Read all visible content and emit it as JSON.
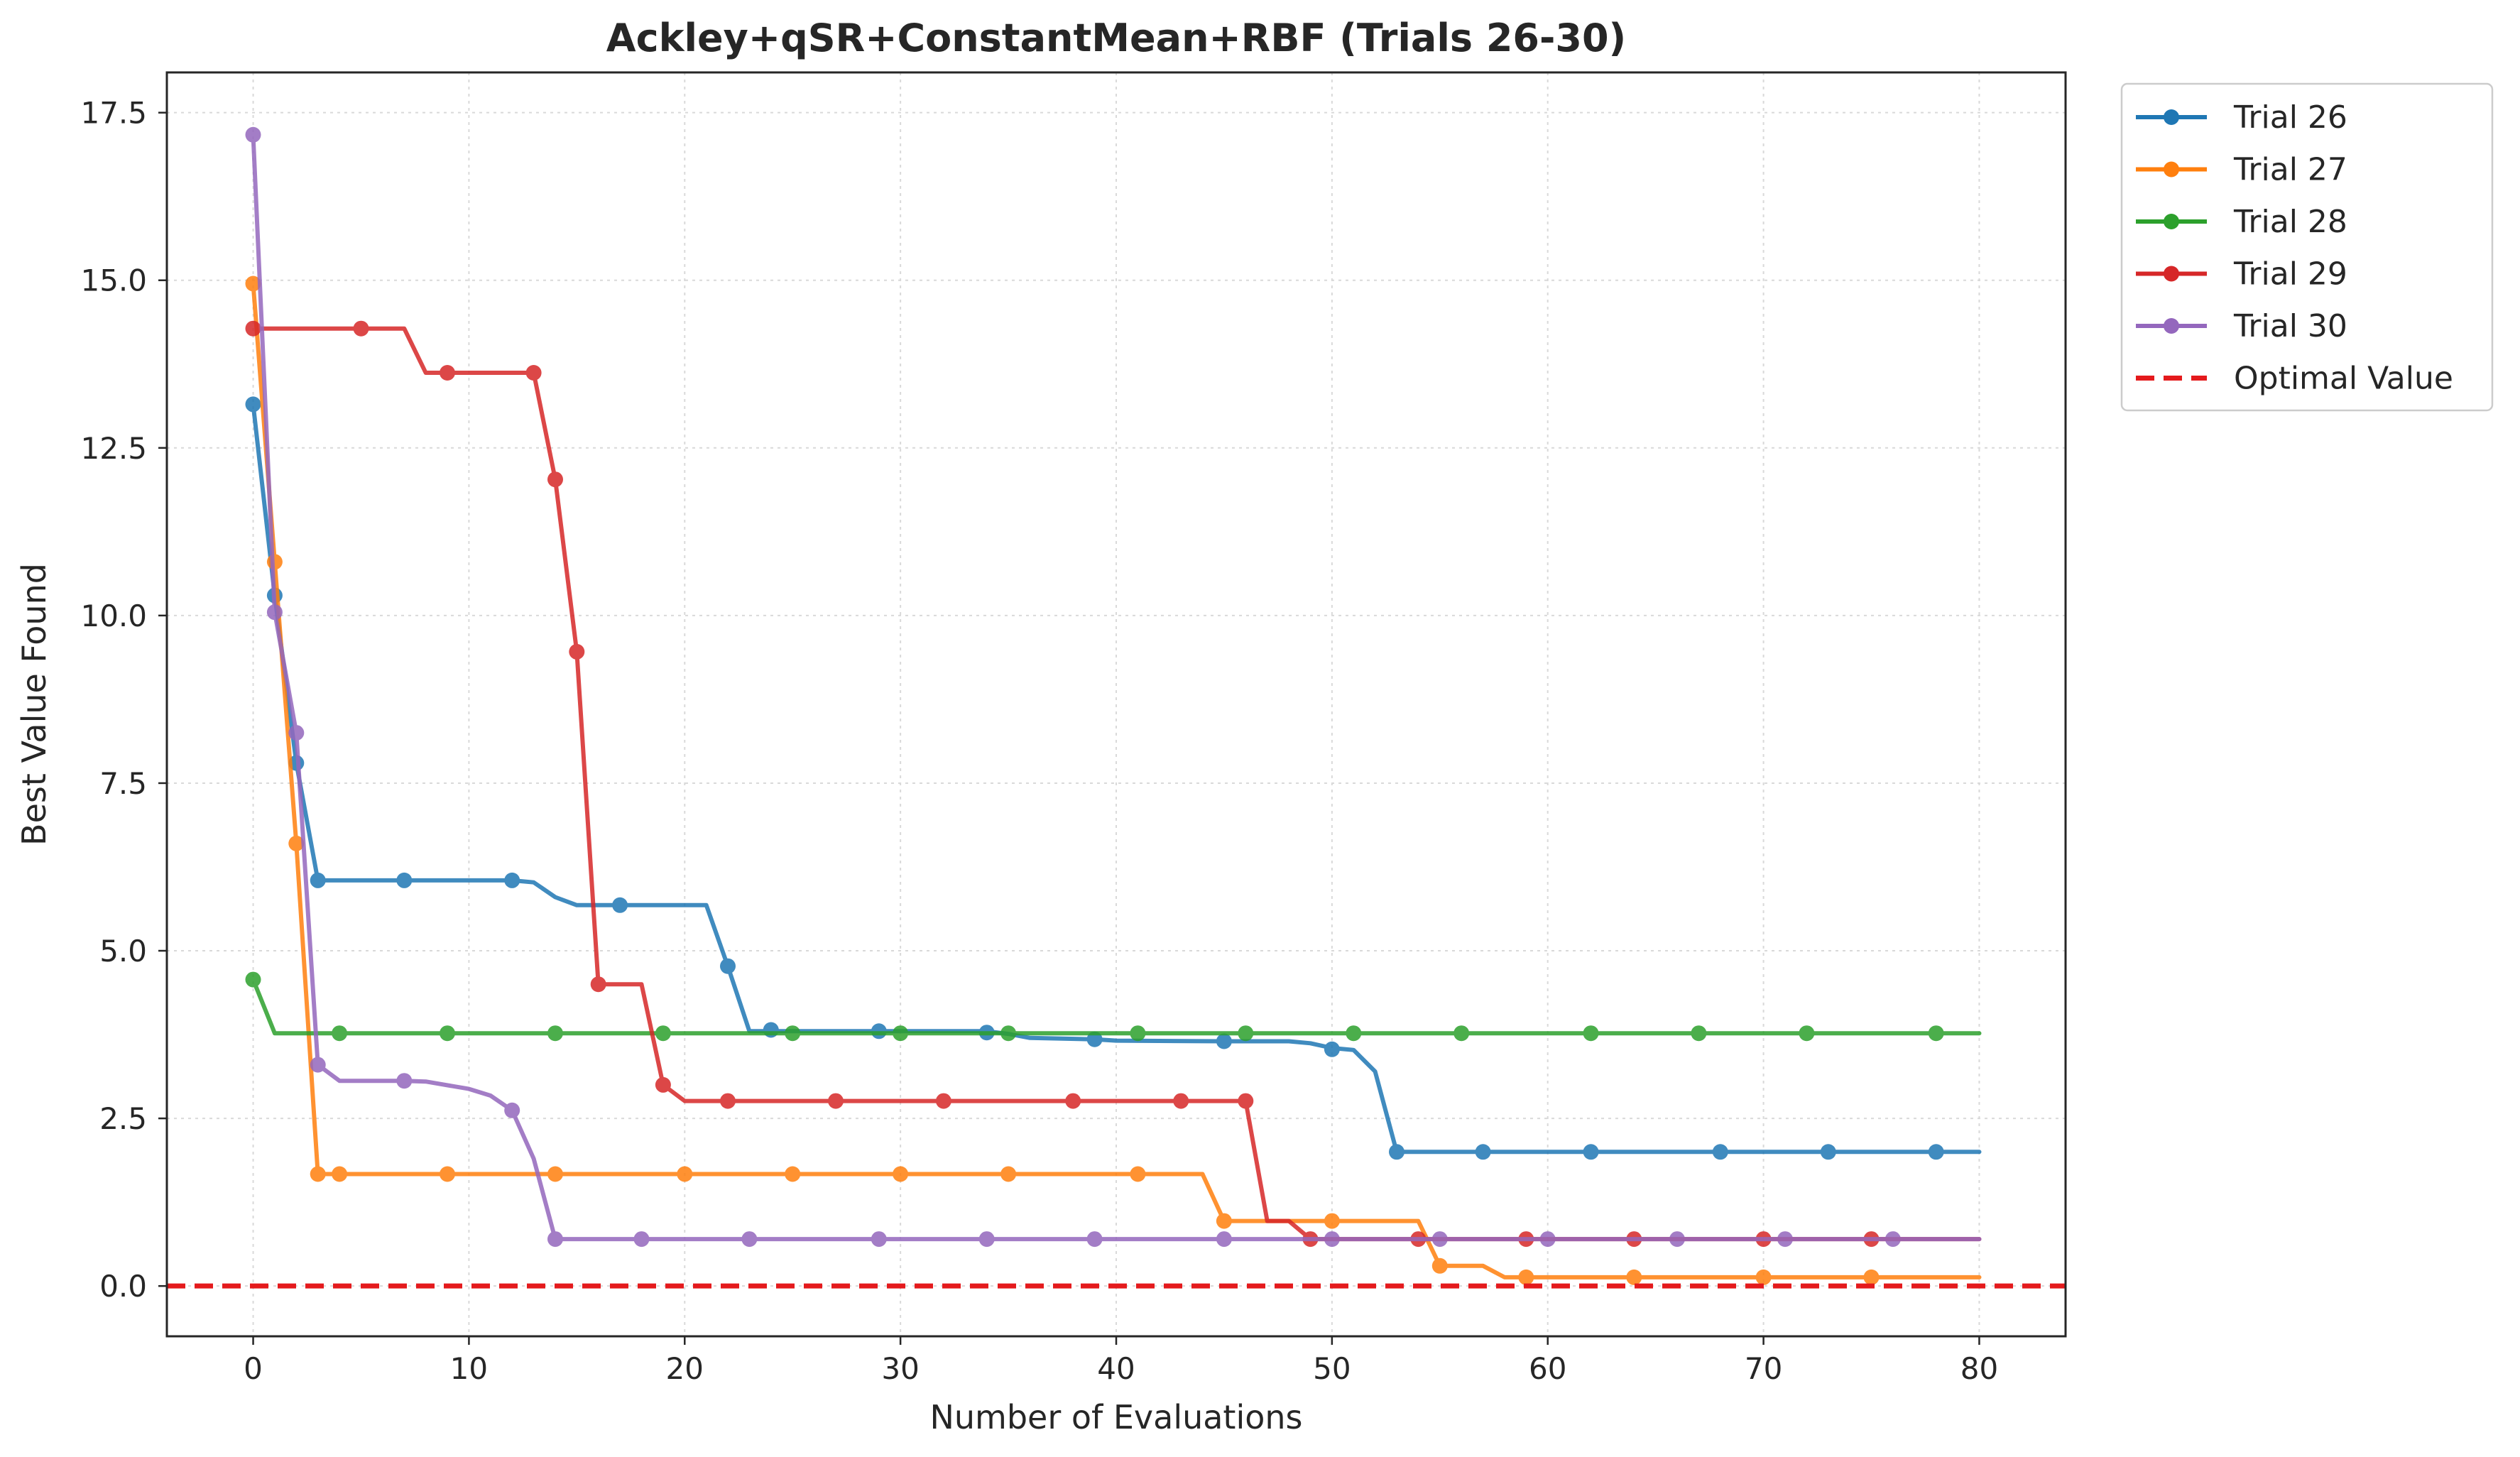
{
  "chart_data": {
    "type": "line",
    "title": "Ackley+qSR+ConstantMean+RBF (Trials 26-30)",
    "xlabel": "Number of Evaluations",
    "ylabel": "Best Value Found",
    "xlim": [
      -4,
      84
    ],
    "ylim": [
      -0.75,
      18.1
    ],
    "xticks": [
      0,
      10,
      20,
      30,
      40,
      50,
      60,
      70,
      80
    ],
    "yticks": [
      0.0,
      2.5,
      5.0,
      7.5,
      10.0,
      12.5,
      15.0,
      17.5
    ],
    "xtick_labels": [
      "0",
      "10",
      "20",
      "30",
      "40",
      "50",
      "60",
      "70",
      "80"
    ],
    "ytick_labels": [
      "0.0",
      "2.5",
      "5.0",
      "7.5",
      "10.0",
      "12.5",
      "15.0",
      "17.5"
    ],
    "grid": true,
    "legend_position": "outside-top-right",
    "series": [
      {
        "name": "Trial 26",
        "color": "#1f77b4",
        "line": [
          [
            0,
            13.15
          ],
          [
            1,
            10.3
          ],
          [
            2,
            7.8
          ],
          [
            3,
            6.05
          ],
          [
            12,
            6.05
          ],
          [
            13,
            6.02
          ],
          [
            14,
            5.8
          ],
          [
            15,
            5.68
          ],
          [
            21,
            5.68
          ],
          [
            22,
            4.77
          ],
          [
            23,
            3.8
          ],
          [
            34,
            3.8
          ],
          [
            35,
            3.76
          ],
          [
            36,
            3.7
          ],
          [
            39,
            3.68
          ],
          [
            40,
            3.66
          ],
          [
            45,
            3.65
          ],
          [
            48,
            3.65
          ],
          [
            49,
            3.62
          ],
          [
            50,
            3.55
          ],
          [
            51,
            3.52
          ],
          [
            52,
            3.2
          ],
          [
            53,
            2.0
          ],
          [
            80,
            2.0
          ]
        ],
        "markers": [
          [
            0,
            13.15
          ],
          [
            1,
            10.3
          ],
          [
            2,
            7.8
          ],
          [
            3,
            6.05
          ],
          [
            7,
            6.05
          ],
          [
            12,
            6.05
          ],
          [
            17,
            5.68
          ],
          [
            22,
            4.77
          ],
          [
            24,
            3.82
          ],
          [
            29,
            3.8
          ],
          [
            34,
            3.78
          ],
          [
            39,
            3.68
          ],
          [
            45,
            3.65
          ],
          [
            50,
            3.53
          ],
          [
            53,
            2.0
          ],
          [
            57,
            2.0
          ],
          [
            62,
            2.0
          ],
          [
            68,
            2.0
          ],
          [
            73,
            2.0
          ],
          [
            78,
            2.0
          ]
        ]
      },
      {
        "name": "Trial 27",
        "color": "#ff7f0e",
        "line": [
          [
            0,
            14.95
          ],
          [
            1,
            10.8
          ],
          [
            2,
            6.6
          ],
          [
            3,
            1.67
          ],
          [
            44,
            1.67
          ],
          [
            45,
            0.97
          ],
          [
            54,
            0.97
          ],
          [
            55,
            0.3
          ],
          [
            57,
            0.3
          ],
          [
            58,
            0.13
          ],
          [
            80,
            0.13
          ]
        ],
        "markers": [
          [
            0,
            14.95
          ],
          [
            1,
            10.8
          ],
          [
            2,
            6.6
          ],
          [
            3,
            1.67
          ],
          [
            4,
            1.67
          ],
          [
            9,
            1.67
          ],
          [
            14,
            1.67
          ],
          [
            20,
            1.67
          ],
          [
            25,
            1.67
          ],
          [
            30,
            1.67
          ],
          [
            35,
            1.67
          ],
          [
            41,
            1.67
          ],
          [
            45,
            0.97
          ],
          [
            50,
            0.97
          ],
          [
            55,
            0.3
          ],
          [
            59,
            0.13
          ],
          [
            64,
            0.13
          ],
          [
            70,
            0.13
          ],
          [
            75,
            0.13
          ]
        ]
      },
      {
        "name": "Trial 28",
        "color": "#2ca02c",
        "line": [
          [
            0,
            4.57
          ],
          [
            1,
            3.77
          ],
          [
            80,
            3.77
          ]
        ],
        "markers": [
          [
            0,
            4.57
          ],
          [
            4,
            3.77
          ],
          [
            9,
            3.77
          ],
          [
            14,
            3.77
          ],
          [
            19,
            3.77
          ],
          [
            25,
            3.77
          ],
          [
            30,
            3.77
          ],
          [
            35,
            3.77
          ],
          [
            41,
            3.77
          ],
          [
            46,
            3.77
          ],
          [
            51,
            3.77
          ],
          [
            56,
            3.77
          ],
          [
            62,
            3.77
          ],
          [
            67,
            3.77
          ],
          [
            72,
            3.77
          ],
          [
            78,
            3.77
          ]
        ]
      },
      {
        "name": "Trial 29",
        "color": "#d62728",
        "line": [
          [
            0,
            14.28
          ],
          [
            7,
            14.28
          ],
          [
            8,
            13.62
          ],
          [
            13,
            13.62
          ],
          [
            14,
            12.03
          ],
          [
            15,
            9.46
          ],
          [
            16,
            4.5
          ],
          [
            18,
            4.5
          ],
          [
            19,
            3.0
          ],
          [
            20,
            2.76
          ],
          [
            46,
            2.76
          ],
          [
            47,
            0.97
          ],
          [
            48,
            0.97
          ],
          [
            49,
            0.7
          ],
          [
            80,
            0.7
          ]
        ],
        "markers": [
          [
            0,
            14.28
          ],
          [
            5,
            14.28
          ],
          [
            9,
            13.62
          ],
          [
            13,
            13.62
          ],
          [
            14,
            12.03
          ],
          [
            15,
            9.46
          ],
          [
            16,
            4.5
          ],
          [
            19,
            3.0
          ],
          [
            22,
            2.76
          ],
          [
            27,
            2.76
          ],
          [
            32,
            2.76
          ],
          [
            38,
            2.76
          ],
          [
            43,
            2.76
          ],
          [
            46,
            2.76
          ],
          [
            49,
            0.7
          ],
          [
            54,
            0.7
          ],
          [
            59,
            0.7
          ],
          [
            64,
            0.7
          ],
          [
            70,
            0.7
          ],
          [
            75,
            0.7
          ]
        ]
      },
      {
        "name": "Trial 30",
        "color": "#9467bd",
        "line": [
          [
            0,
            17.17
          ],
          [
            1,
            10.05
          ],
          [
            2,
            8.25
          ],
          [
            3,
            3.3
          ],
          [
            4,
            3.06
          ],
          [
            7,
            3.06
          ],
          [
            8,
            3.05
          ],
          [
            10,
            2.94
          ],
          [
            11,
            2.84
          ],
          [
            12,
            2.62
          ],
          [
            13,
            1.9
          ],
          [
            14,
            0.7
          ],
          [
            80,
            0.7
          ]
        ],
        "markers": [
          [
            0,
            17.17
          ],
          [
            1,
            10.05
          ],
          [
            2,
            8.25
          ],
          [
            3,
            3.3
          ],
          [
            7,
            3.06
          ],
          [
            12,
            2.62
          ],
          [
            14,
            0.7
          ],
          [
            18,
            0.7
          ],
          [
            23,
            0.7
          ],
          [
            29,
            0.7
          ],
          [
            34,
            0.7
          ],
          [
            39,
            0.7
          ],
          [
            45,
            0.7
          ],
          [
            50,
            0.7
          ],
          [
            55,
            0.7
          ],
          [
            60,
            0.7
          ],
          [
            66,
            0.7
          ],
          [
            71,
            0.7
          ],
          [
            76,
            0.7
          ]
        ]
      }
    ],
    "reference_line": {
      "name": "Optimal Value",
      "y": 0.0,
      "color": "#e41a1c",
      "style": "dashed"
    }
  }
}
